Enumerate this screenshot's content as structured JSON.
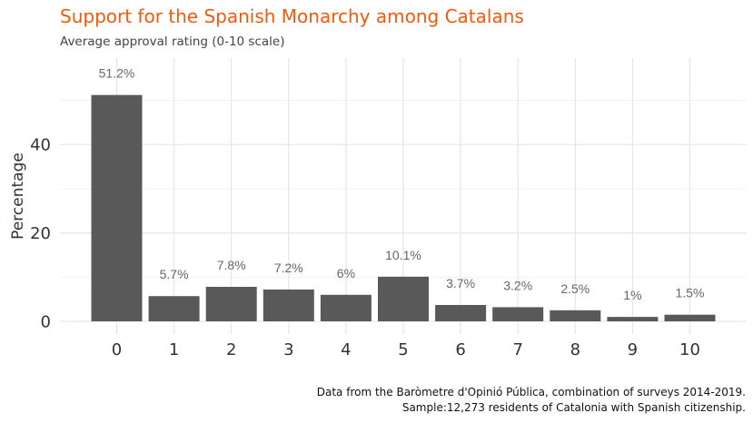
{
  "chart_data": {
    "type": "bar",
    "title": "Support for the Spanish Monarchy among Catalans",
    "subtitle": "Average approval rating (0-10 scale)",
    "xlabel": "",
    "ylabel": "Percentage",
    "categories": [
      "0",
      "1",
      "2",
      "3",
      "4",
      "5",
      "6",
      "7",
      "8",
      "9",
      "10"
    ],
    "values": [
      51.2,
      5.7,
      7.8,
      7.2,
      6,
      10.1,
      3.7,
      3.2,
      2.5,
      1,
      1.5
    ],
    "data_labels": [
      "51.2%",
      "5.7%",
      "7.8%",
      "7.2%",
      "6%",
      "10.1%",
      "3.7%",
      "3.2%",
      "2.5%",
      "1%",
      "1.5%"
    ],
    "yticks": [
      0,
      20,
      40
    ],
    "ylim": [
      0,
      59
    ],
    "grid": true,
    "legend": "none",
    "bar_color": "#595959",
    "title_color": "#f15a0c",
    "caption": [
      "Data from the Baròmetre d'Opinió Pública, combination of surveys 2014-2019.",
      "Sample:12,273 residents of Catalonia with Spanish citizenship."
    ]
  }
}
